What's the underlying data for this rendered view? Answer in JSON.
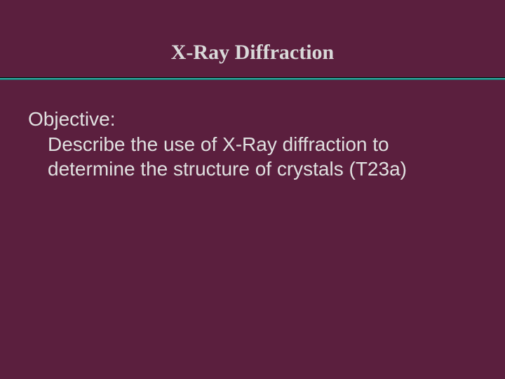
{
  "slide": {
    "title": "X-Ray Diffraction",
    "objective_label": "Objective:",
    "objective_body": "Describe the use of X-Ray diffraction to determine the structure of crystals  (T23a)",
    "background_color": "#5b1f3e",
    "text_color": "#e0e0e0",
    "title_color": "#d9d9d9",
    "divider_color": "#2aa198",
    "title_fontsize": 30,
    "body_fontsize": 28,
    "title_font": "Times New Roman, serif",
    "body_font": "Arial, sans-serif"
  }
}
